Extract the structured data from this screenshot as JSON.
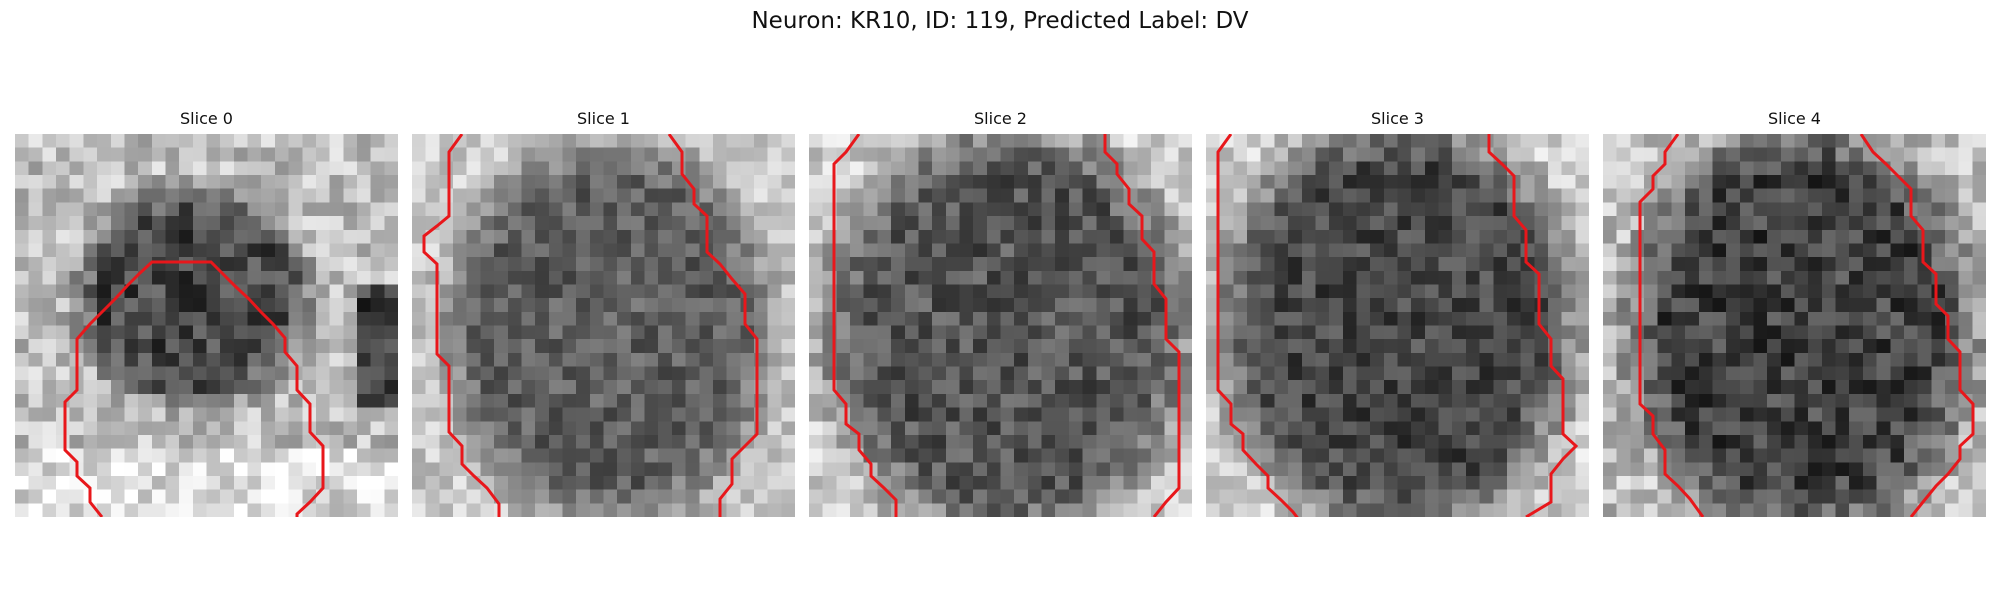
{
  "figure": {
    "title": "Neuron: KR10, ID: 119, Predicted Label: DV"
  },
  "overlay_color": "#e8171b",
  "slices": [
    {
      "label": "Slice 0",
      "pattern": "blob-center"
    },
    {
      "label": "Slice 1",
      "pattern": "oval-mid"
    },
    {
      "label": "Slice 2",
      "pattern": "oval-dark"
    },
    {
      "label": "Slice 3",
      "pattern": "oval-darker"
    },
    {
      "label": "Slice 4",
      "pattern": "oval-darkest"
    }
  ]
}
